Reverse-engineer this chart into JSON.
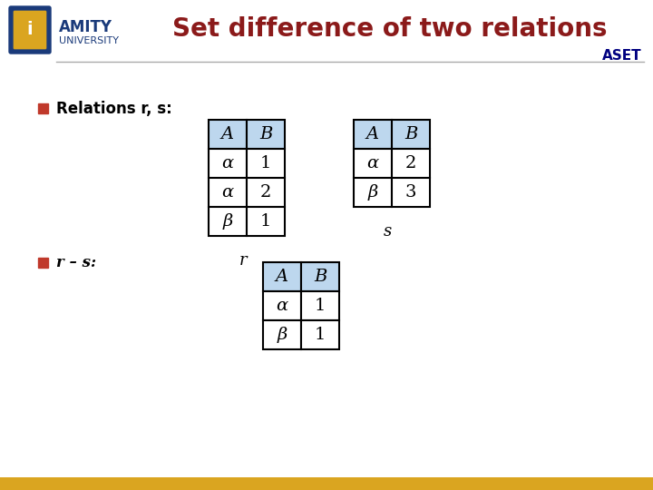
{
  "title": "Set difference of two relations",
  "title_color": "#8B1A1A",
  "aset_text": "ASET",
  "aset_color": "#000080",
  "bg_color": "#ffffff",
  "header_bg": "#BDD7EE",
  "bullet_color": "#C0392B",
  "table_r_header": [
    "A",
    "B"
  ],
  "table_r_rows": [
    [
      "α",
      "1"
    ],
    [
      "α",
      "2"
    ],
    [
      "β",
      "1"
    ]
  ],
  "table_r_label": "r",
  "table_s_header": [
    "A",
    "B"
  ],
  "table_s_rows": [
    [
      "α",
      "2"
    ],
    [
      "β",
      "3"
    ]
  ],
  "table_s_label": "s",
  "table_rs_header": [
    "A",
    "B"
  ],
  "table_rs_rows": [
    [
      "α",
      "1"
    ],
    [
      "β",
      "1"
    ]
  ],
  "bullet1_text": "Relations r, s:",
  "bullet2_text": "r – s:",
  "footer_color": "#DAA520",
  "line_color": "#aaaaaa",
  "amity_blue": "#1a3a7a",
  "amity_gold": "#DAA520"
}
